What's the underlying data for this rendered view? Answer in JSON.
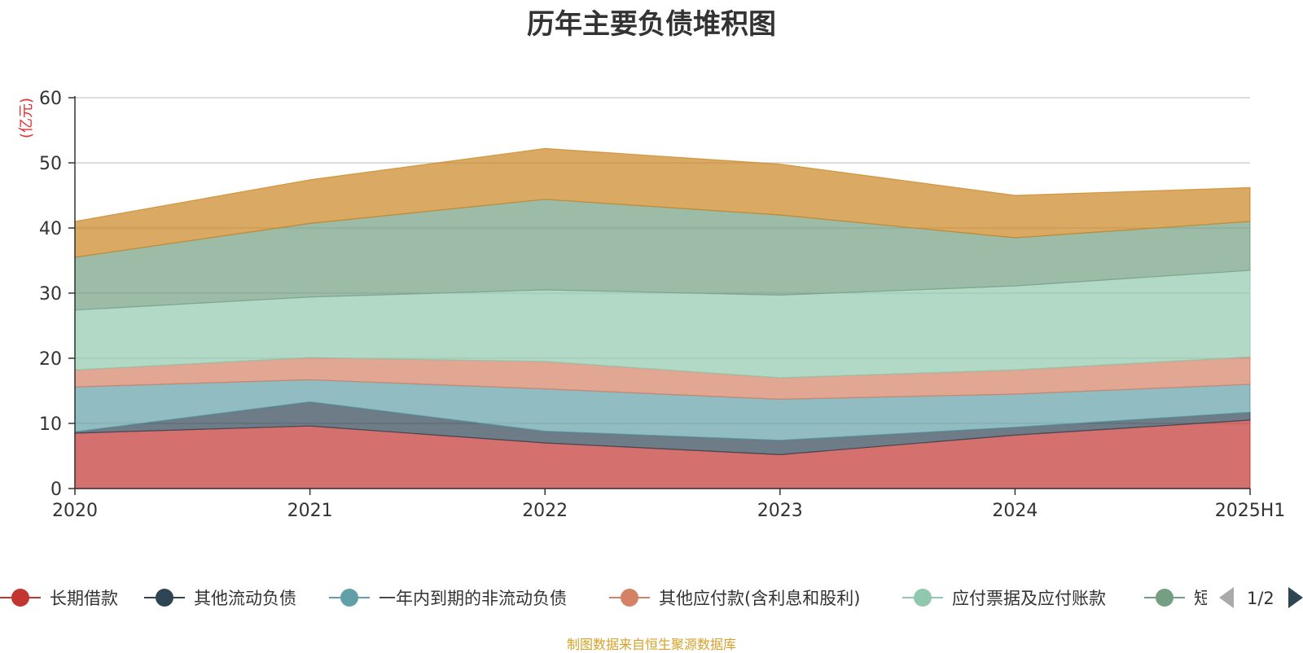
{
  "chart_data": {
    "type": "area",
    "stacked": true,
    "title": "历年主要负债堆积图",
    "ylabel": "(亿元)",
    "ylim": [
      0,
      60
    ],
    "yticks": [
      0,
      10,
      20,
      30,
      40,
      50,
      60
    ],
    "x": [
      "2020",
      "2021",
      "2022",
      "2023",
      "2024",
      "2025H1"
    ],
    "grid": true,
    "series": [
      {
        "name": "长期借款",
        "color": "#c23531",
        "values": [
          8.5,
          9.6,
          7.0,
          5.2,
          8.2,
          10.5
        ]
      },
      {
        "name": "其他流动负债",
        "color": "#2f4554",
        "values": [
          0.2,
          3.7,
          1.8,
          2.2,
          1.2,
          1.2
        ]
      },
      {
        "name": "一年内到期的非流动负债",
        "color": "#61a0a8",
        "values": [
          6.9,
          3.4,
          6.5,
          6.3,
          5.1,
          4.3
        ]
      },
      {
        "name": "其他应付款(含利息和股利)",
        "color": "#d48265",
        "values": [
          2.6,
          3.4,
          4.2,
          3.3,
          3.7,
          4.2
        ]
      },
      {
        "name": "应付票据及应付账款",
        "color": "#91c7ae",
        "values": [
          9.2,
          9.3,
          11.0,
          12.7,
          12.9,
          13.3
        ]
      },
      {
        "name": "短期借款",
        "color": "#749f83",
        "values": [
          8.1,
          11.3,
          13.9,
          12.3,
          7.4,
          7.5
        ]
      },
      {
        "name": "",
        "color": "#ca8622",
        "values": [
          5.5,
          6.7,
          7.8,
          7.8,
          6.5,
          5.2
        ]
      }
    ]
  },
  "legend": {
    "page": "1/2",
    "items": [
      "长期借款",
      "其他流动负债",
      "一年内到期的非流动负债",
      "其他应付款(含利息和股利)",
      "应付票据及应付账款",
      "短"
    ]
  },
  "source_note": "制图数据来自恒生聚源数据库"
}
